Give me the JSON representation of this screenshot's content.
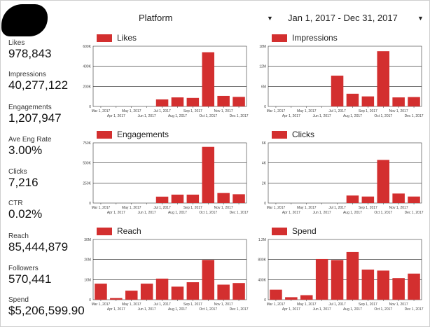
{
  "filters": {
    "platform_label": "Platform",
    "date_range": "Jan 1, 2017 - Dec 31, 2017",
    "dropdown_icon": "caret-down-icon"
  },
  "metrics": [
    {
      "label": "Likes",
      "value": "978,843"
    },
    {
      "label": "Impressions",
      "value": "40,277,122"
    },
    {
      "label": "Engagements",
      "value": "1,207,947"
    },
    {
      "label": "Ave Eng Rate",
      "value": "3.00%"
    },
    {
      "label": "Clicks",
      "value": "7,216"
    },
    {
      "label": "CTR",
      "value": "0.02%"
    },
    {
      "label": "Reach",
      "value": "85,444,879"
    },
    {
      "label": "Followers",
      "value": "570,441"
    },
    {
      "label": "Spend",
      "value": "$5,206,599.90"
    }
  ],
  "chart_colors": {
    "bar": "#d32f2f",
    "axis": "#333333",
    "grid": "#222222"
  },
  "chart_data": [
    {
      "type": "bar",
      "legend": "Likes",
      "x": [
        "2017-03-01",
        "2017-04-01",
        "2017-05-01",
        "2017-06-01",
        "2017-07-01",
        "2017-08-01",
        "2017-09-01",
        "2017-10-01",
        "2017-11-01",
        "2017-12-01"
      ],
      "values": [
        0,
        0,
        0,
        0,
        70000,
        90000,
        85000,
        540000,
        105000,
        95000
      ],
      "ylim": [
        0,
        600000
      ],
      "yticks": [
        {
          "v": 0,
          "label": "0"
        },
        {
          "v": 200000,
          "label": "200K"
        },
        {
          "v": 400000,
          "label": "400K"
        },
        {
          "v": 600000,
          "label": "600K"
        }
      ]
    },
    {
      "type": "bar",
      "legend": "Impressions",
      "x": [
        "2017-03-01",
        "2017-04-01",
        "2017-05-01",
        "2017-06-01",
        "2017-07-01",
        "2017-08-01",
        "2017-09-01",
        "2017-10-01",
        "2017-11-01",
        "2017-12-01"
      ],
      "values": [
        0,
        0,
        0,
        0,
        9200000,
        3800000,
        3000000,
        16500000,
        2700000,
        2800000
      ],
      "ylim": [
        0,
        18000000
      ],
      "yticks": [
        {
          "v": 0,
          "label": "0"
        },
        {
          "v": 6000000,
          "label": "6M"
        },
        {
          "v": 12000000,
          "label": "12M"
        },
        {
          "v": 18000000,
          "label": "18M"
        }
      ]
    },
    {
      "type": "bar",
      "legend": "Engagements",
      "x": [
        "2017-03-01",
        "2017-04-01",
        "2017-05-01",
        "2017-06-01",
        "2017-07-01",
        "2017-08-01",
        "2017-09-01",
        "2017-10-01",
        "2017-11-01",
        "2017-12-01"
      ],
      "values": [
        0,
        0,
        0,
        0,
        80000,
        105000,
        105000,
        700000,
        125000,
        110000
      ],
      "ylim": [
        0,
        750000
      ],
      "yticks": [
        {
          "v": 0,
          "label": "0"
        },
        {
          "v": 250000,
          "label": "250K"
        },
        {
          "v": 500000,
          "label": "500K"
        },
        {
          "v": 750000,
          "label": "750K"
        }
      ]
    },
    {
      "type": "bar",
      "legend": "Clicks",
      "x": [
        "2017-03-01",
        "2017-04-01",
        "2017-05-01",
        "2017-06-01",
        "2017-07-01",
        "2017-08-01",
        "2017-09-01",
        "2017-10-01",
        "2017-11-01",
        "2017-12-01"
      ],
      "values": [
        0,
        0,
        0,
        0,
        0,
        750,
        650,
        4300,
        950,
        650
      ],
      "ylim": [
        0,
        6000
      ],
      "yticks": [
        {
          "v": 0,
          "label": "0"
        },
        {
          "v": 2000,
          "label": "2K"
        },
        {
          "v": 4000,
          "label": "4K"
        },
        {
          "v": 6000,
          "label": "6K"
        }
      ]
    },
    {
      "type": "bar",
      "legend": "Reach",
      "x": [
        "2017-03-01",
        "2017-04-01",
        "2017-05-01",
        "2017-06-01",
        "2017-07-01",
        "2017-08-01",
        "2017-09-01",
        "2017-10-01",
        "2017-11-01",
        "2017-12-01"
      ],
      "values": [
        8000000,
        800000,
        4500000,
        8000000,
        10500000,
        6500000,
        8700000,
        19800000,
        7500000,
        8300000
      ],
      "ylim": [
        0,
        30000000
      ],
      "yticks": [
        {
          "v": 0,
          "label": "0"
        },
        {
          "v": 10000000,
          "label": "10M"
        },
        {
          "v": 20000000,
          "label": "20M"
        },
        {
          "v": 30000000,
          "label": "30M"
        }
      ]
    },
    {
      "type": "bar",
      "legend": "Spend",
      "x": [
        "2017-03-01",
        "2017-04-01",
        "2017-05-01",
        "2017-06-01",
        "2017-07-01",
        "2017-08-01",
        "2017-09-01",
        "2017-10-01",
        "2017-11-01",
        "2017-12-01"
      ],
      "values": [
        200000,
        50000,
        90000,
        810000,
        790000,
        950000,
        600000,
        580000,
        430000,
        520000
      ],
      "ylim": [
        0,
        1200000
      ],
      "yticks": [
        {
          "v": 0,
          "label": "0"
        },
        {
          "v": 400000,
          "label": "400K"
        },
        {
          "v": 800000,
          "label": "800K"
        },
        {
          "v": 1200000,
          "label": "1.2M"
        }
      ]
    }
  ],
  "x_axis": {
    "ticks_top": [
      "Mar 1, 2017",
      "May 1, 2017",
      "Jul 1, 2017",
      "Sep 1, 2017",
      "Nov 1, 2017"
    ],
    "ticks_bottom": [
      "Apr 1, 2017",
      "Jun 1, 2017",
      "Aug 1, 2017",
      "Oct 1, 2017",
      "Dec 1, 2017"
    ]
  }
}
